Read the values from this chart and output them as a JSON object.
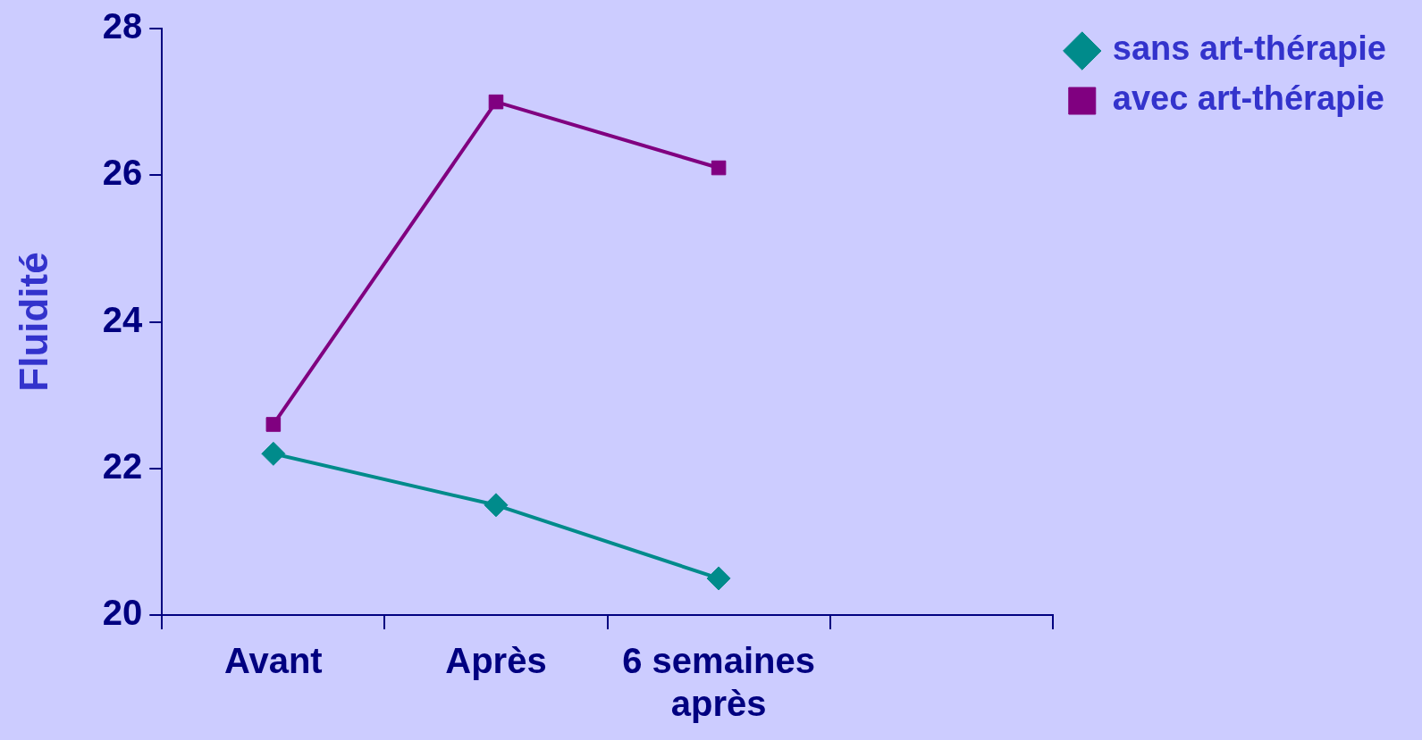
{
  "chart_data": {
    "type": "line",
    "ylabel": "Fluidité",
    "categories": [
      "Avant",
      "Après",
      "6 semaines après",
      null
    ],
    "ylim": [
      20,
      28
    ],
    "yticks": [
      20,
      22,
      24,
      26,
      28
    ],
    "grid": false,
    "legend": "top right",
    "series": [
      {
        "name": "sans art-thérapie",
        "color": "#008b8b",
        "marker": "diamond",
        "values": [
          22.2,
          21.5,
          20.5,
          null
        ]
      },
      {
        "name": "avec art-thérapie",
        "color": "#800080",
        "marker": "square",
        "values": [
          22.6,
          27.0,
          26.1,
          null
        ]
      }
    ]
  }
}
